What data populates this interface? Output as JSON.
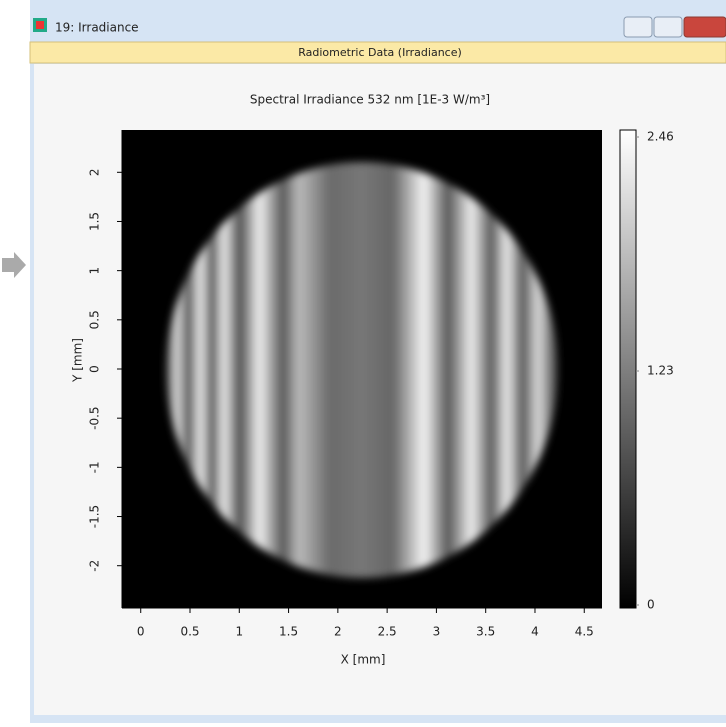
{
  "window": {
    "title": "19: Irradiance",
    "header": "Radiometric Data (Irradiance)"
  },
  "chart_data": {
    "type": "heatmap",
    "title": "Spectral Irradiance 532 nm  [1E-3 W/m³]",
    "x_label": "X [mm]",
    "y_label": "Y [mm]",
    "xlim": [
      -0.19,
      4.68
    ],
    "xticks": [
      0,
      0.5,
      1,
      1.5,
      2,
      2.5,
      3,
      3.5,
      4,
      4.5
    ],
    "ylim": [
      -2.43,
      2.43
    ],
    "yticks": [
      -2,
      -1.5,
      -1,
      -0.5,
      0,
      0.5,
      1,
      1.5,
      2
    ],
    "colorbar": {
      "lim": [
        0,
        2.46
      ],
      "ticks": [
        0,
        1.23,
        2.46
      ]
    }
  }
}
